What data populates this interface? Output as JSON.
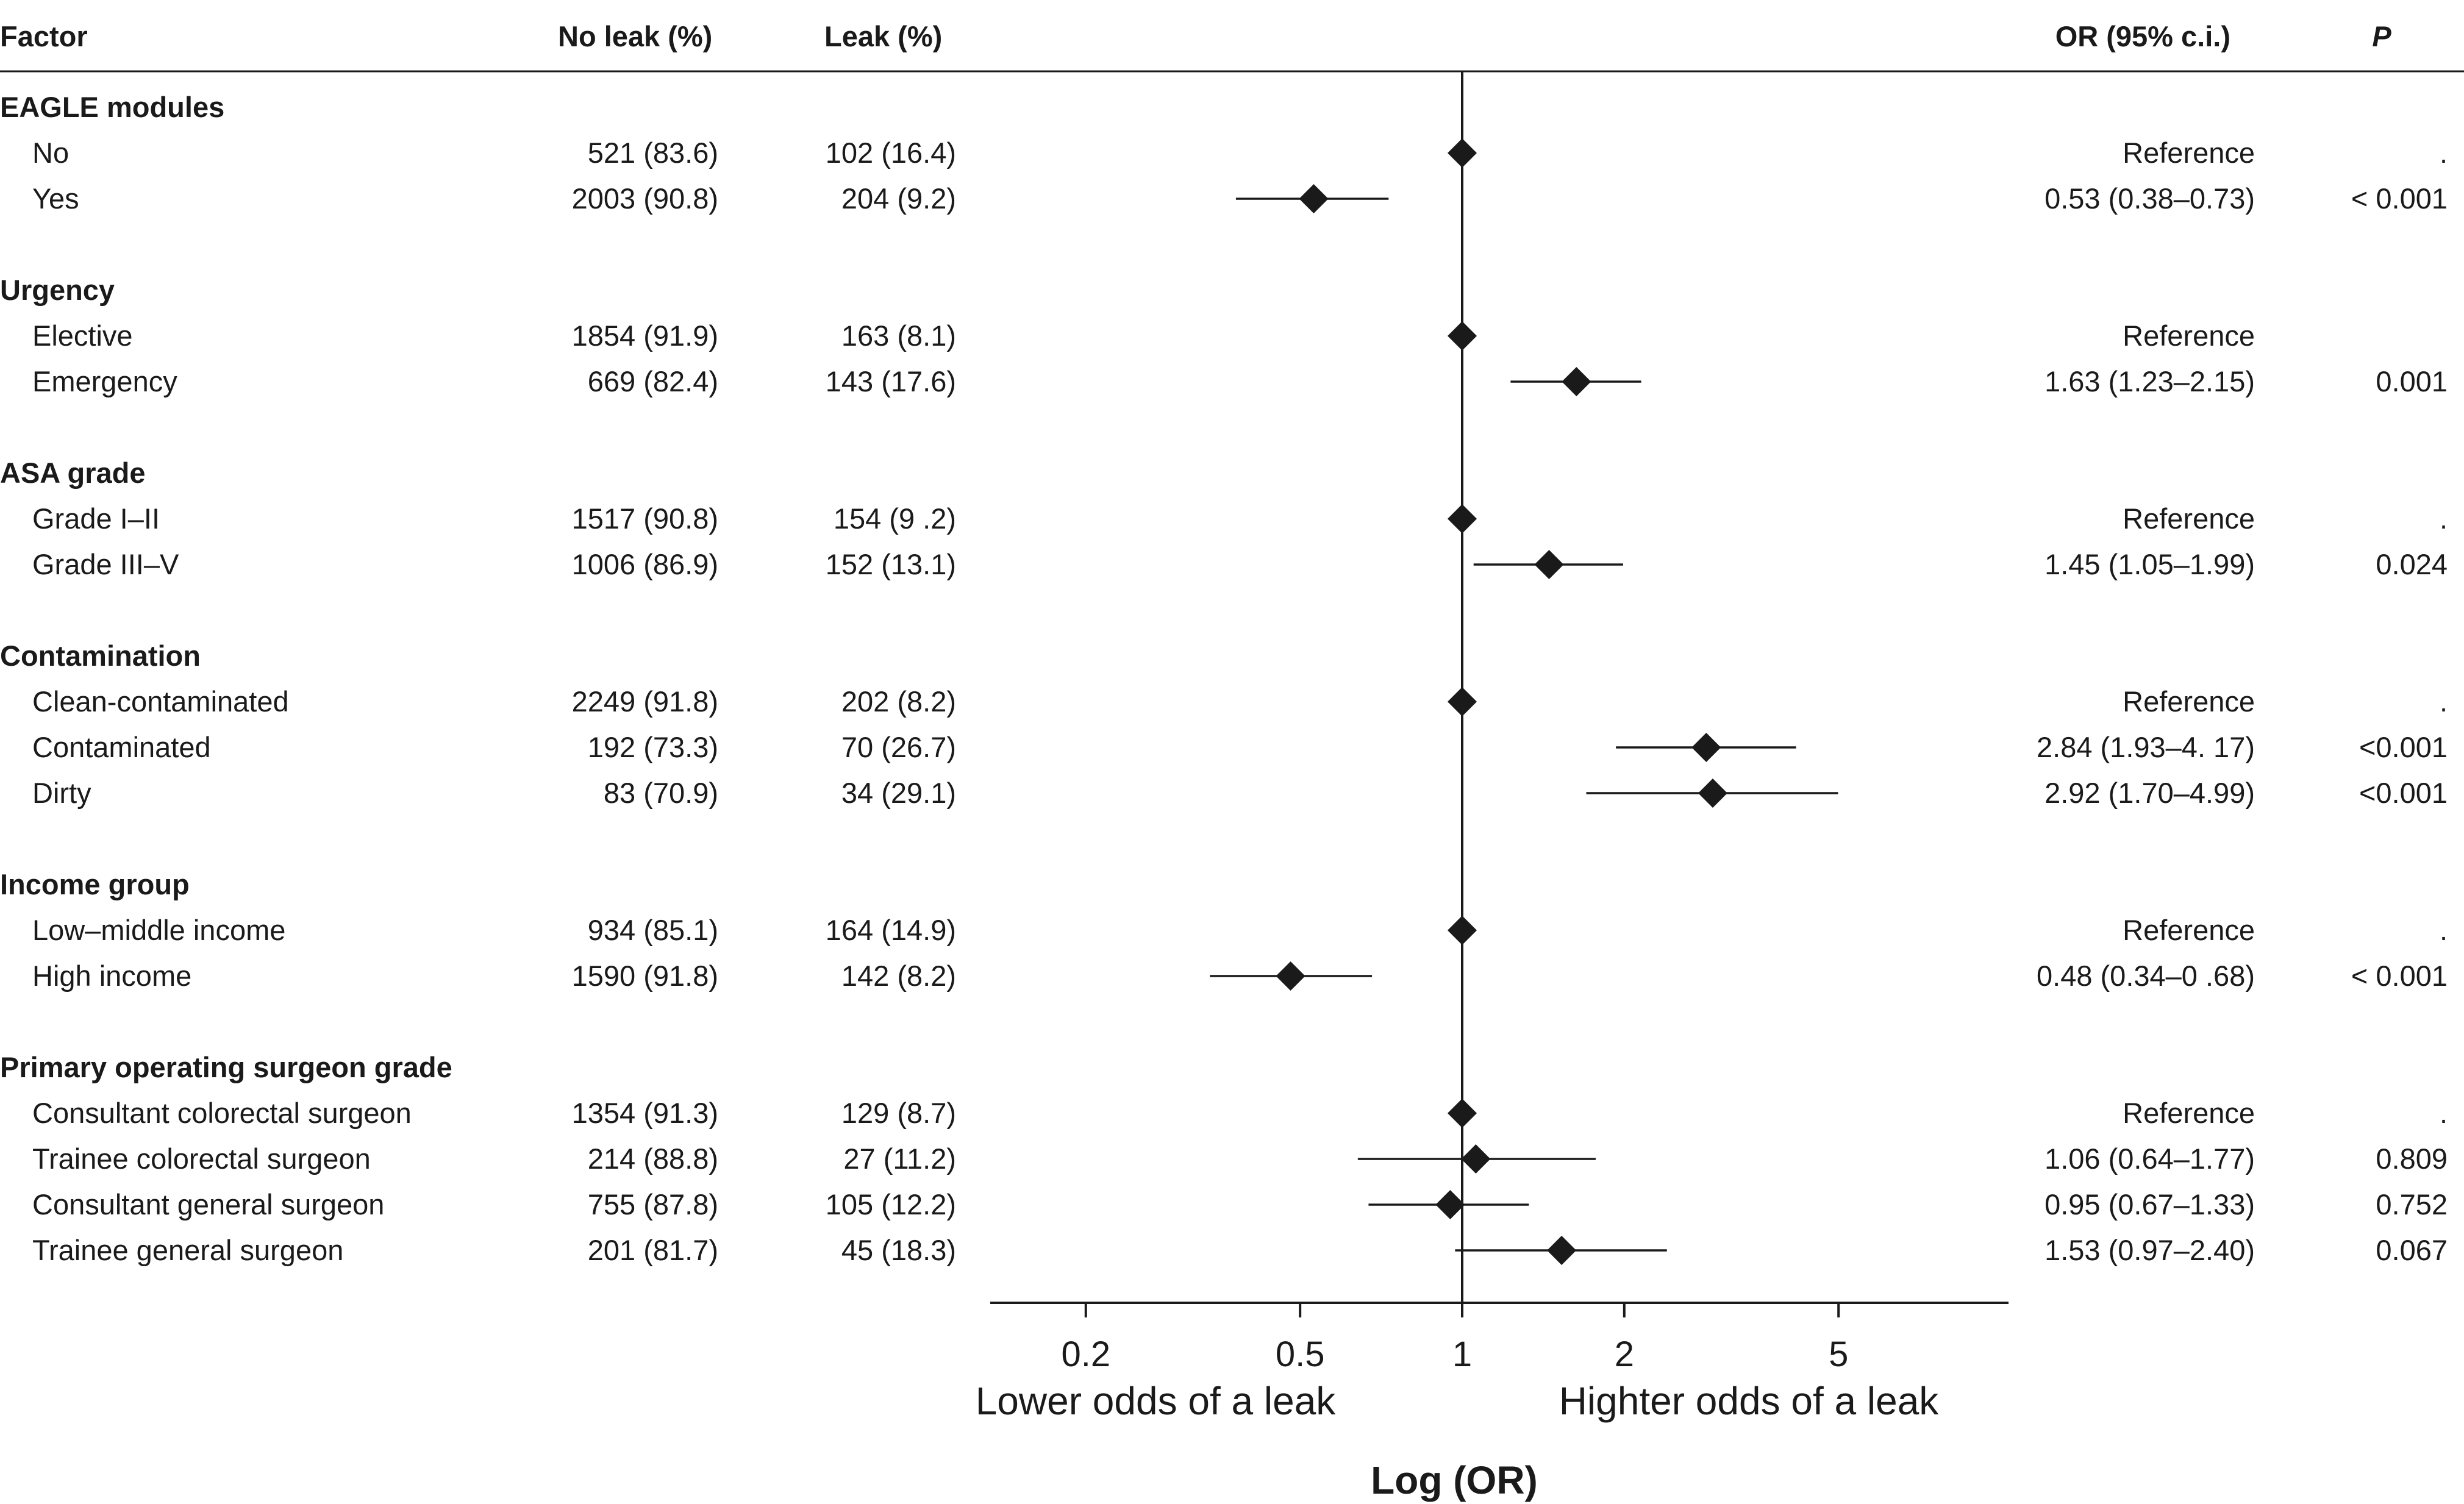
{
  "columns": {
    "factor": "Factor",
    "no_leak": "No leak (%)",
    "leak": "Leak (%)",
    "or_ci": "OR (95% c.i.)",
    "p": "P"
  },
  "chart_data": {
    "type": "forest",
    "xscale": "log",
    "xlim": [
      0.15,
      7.5
    ],
    "reference_value": 1,
    "xticks": [
      0.2,
      0.5,
      1,
      2,
      5
    ],
    "xtick_labels": [
      "0.2",
      "0.5",
      "1",
      "2",
      "5"
    ],
    "xlabel": "Log (OR)",
    "direction_labels": {
      "left": "Lower odds of a leak",
      "right": "Highter odds of a leak"
    },
    "groups": [
      {
        "name": "EAGLE modules",
        "rows": [
          {
            "label": "No",
            "no_leak": "521 (83.6)",
            "leak": "102 (16.4)",
            "or_text": "Reference",
            "p_text": ".",
            "or": 1,
            "lo": null,
            "hi": null
          },
          {
            "label": "Yes",
            "no_leak": "2003 (90.8)",
            "leak": "204 (9.2)",
            "or_text": "0.53 (0.38–0.73)",
            "p_text": "< 0.001",
            "or": 0.53,
            "lo": 0.38,
            "hi": 0.73
          }
        ]
      },
      {
        "name": "Urgency",
        "rows": [
          {
            "label": "Elective",
            "no_leak": "1854 (91.9)",
            "leak": "163 (8.1)",
            "or_text": "Reference",
            "p_text": "",
            "or": 1,
            "lo": null,
            "hi": null
          },
          {
            "label": "Emergency",
            "no_leak": "669 (82.4)",
            "leak": "143 (17.6)",
            "or_text": "1.63 (1.23–2.15)",
            "p_text": "0.001",
            "or": 1.63,
            "lo": 1.23,
            "hi": 2.15
          }
        ]
      },
      {
        "name": "ASA grade",
        "rows": [
          {
            "label": "Grade I–II",
            "no_leak": "1517 (90.8)",
            "leak": "154 (9 .2)",
            "or_text": "Reference",
            "p_text": ".",
            "or": 1,
            "lo": null,
            "hi": null
          },
          {
            "label": "Grade III–V",
            "no_leak": "1006 (86.9)",
            "leak": "152 (13.1)",
            "or_text": "1.45 (1.05–1.99)",
            "p_text": "0.024",
            "or": 1.45,
            "lo": 1.05,
            "hi": 1.99
          }
        ]
      },
      {
        "name": "Contamination",
        "rows": [
          {
            "label": "Clean-contaminated",
            "no_leak": "2249 (91.8)",
            "leak": "202 (8.2)",
            "or_text": "Reference",
            "p_text": ".",
            "or": 1,
            "lo": null,
            "hi": null
          },
          {
            "label": "Contaminated",
            "no_leak": "192 (73.3)",
            "leak": "70 (26.7)",
            "or_text": "2.84 (1.93–4. 17)",
            "p_text": "<0.001",
            "or": 2.84,
            "lo": 1.93,
            "hi": 4.17
          },
          {
            "label": "Dirty",
            "no_leak": "83 (70.9)",
            "leak": "34 (29.1)",
            "or_text": "2.92 (1.70–4.99)",
            "p_text": "<0.001",
            "or": 2.92,
            "lo": 1.7,
            "hi": 4.99
          }
        ]
      },
      {
        "name": "Income group",
        "rows": [
          {
            "label": "Low–middle income",
            "no_leak": "934 (85.1)",
            "leak": "164 (14.9)",
            "or_text": "Reference",
            "p_text": ".",
            "or": 1,
            "lo": null,
            "hi": null
          },
          {
            "label": "High income",
            "no_leak": "1590 (91.8)",
            "leak": "142 (8.2)",
            "or_text": "0.48 (0.34–0 .68)",
            "p_text": "< 0.001",
            "or": 0.48,
            "lo": 0.34,
            "hi": 0.68
          }
        ]
      },
      {
        "name": "Primary operating surgeon grade",
        "rows": [
          {
            "label": "Consultant colorectal surgeon",
            "no_leak": "1354 (91.3)",
            "leak": "129 (8.7)",
            "or_text": "Reference",
            "p_text": ".",
            "or": 1,
            "lo": null,
            "hi": null
          },
          {
            "label": "Trainee colorectal surgeon",
            "no_leak": "214 (88.8)",
            "leak": "27 (11.2)",
            "or_text": "1.06 (0.64–1.77)",
            "p_text": "0.809",
            "or": 1.06,
            "lo": 0.64,
            "hi": 1.77
          },
          {
            "label": "Consultant general surgeon",
            "no_leak": "755 (87.8)",
            "leak": "105 (12.2)",
            "or_text": "0.95 (0.67–1.33)",
            "p_text": "0.752",
            "or": 0.95,
            "lo": 0.67,
            "hi": 1.33
          },
          {
            "label": "Trainee general surgeon",
            "no_leak": "201 (81.7)",
            "leak": "45 (18.3)",
            "or_text": "1.53 (0.97–2.40)",
            "p_text": "0.067",
            "or": 1.53,
            "lo": 0.97,
            "hi": 2.4
          }
        ]
      }
    ]
  }
}
